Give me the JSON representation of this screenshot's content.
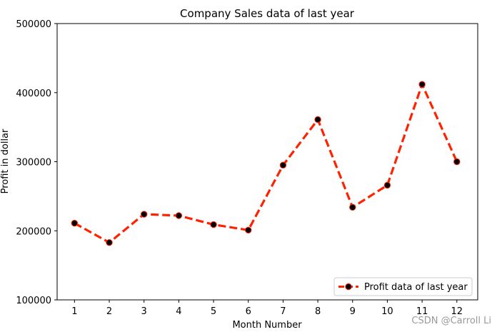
{
  "chart_data": {
    "type": "line",
    "title": "Company Sales data of last year",
    "xlabel": "Month Number",
    "ylabel": "Profit in dollar",
    "x": [
      1,
      2,
      3,
      4,
      5,
      6,
      7,
      8,
      9,
      10,
      11,
      12
    ],
    "series": [
      {
        "name": "Profit data of last year",
        "values": [
          211000,
          183000,
          224000,
          222000,
          209000,
          201000,
          295000,
          361000,
          234000,
          266000,
          412000,
          300000
        ],
        "color": "#ff2200",
        "marker_color": "#000000",
        "line_style": "dashed"
      }
    ],
    "xticks": [
      "1",
      "2",
      "3",
      "4",
      "5",
      "6",
      "7",
      "8",
      "9",
      "10",
      "11",
      "12"
    ],
    "yticks": [
      "100000",
      "200000",
      "300000",
      "400000",
      "500000"
    ],
    "ylim": [
      100000,
      500000
    ],
    "xlim": [
      0.5,
      12.6
    ],
    "grid": false,
    "legend_position": "lower-right"
  },
  "watermark": "CSDN @Carroll Li"
}
